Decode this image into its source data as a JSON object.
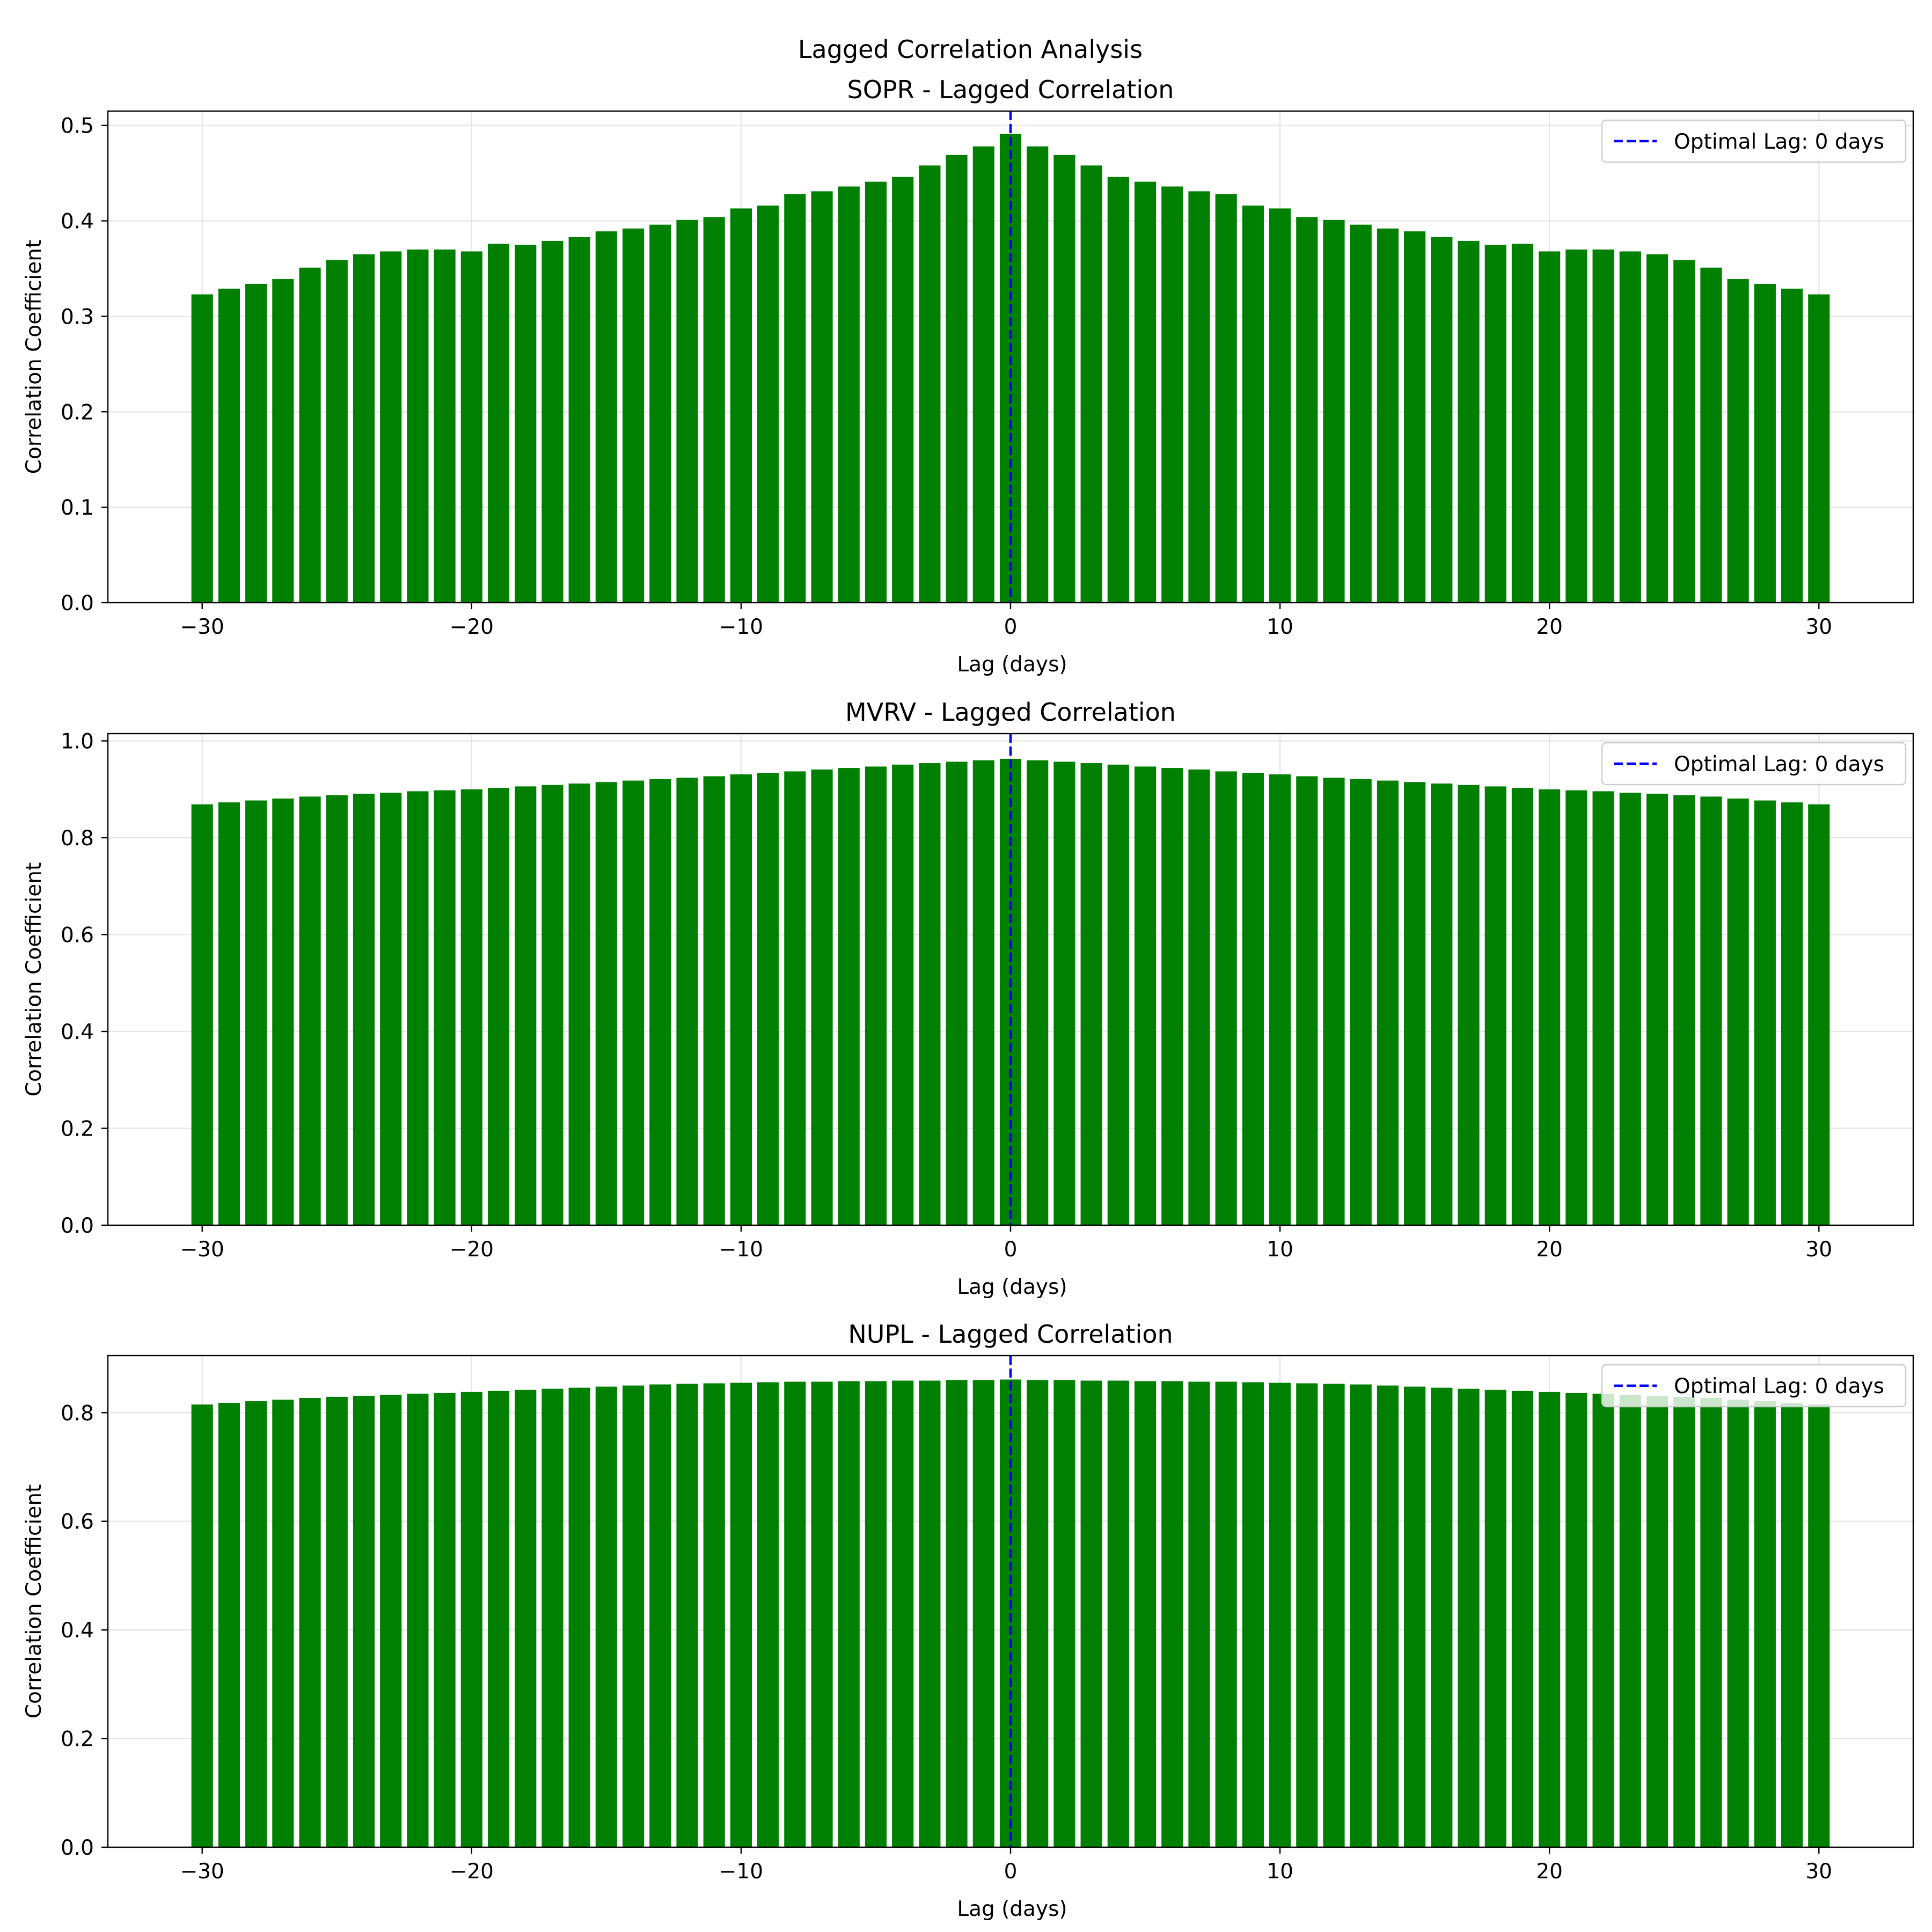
{
  "figure": {
    "suptitle": "Lagged Correlation Analysis"
  },
  "colors": {
    "bar": "#008000",
    "optimal_line": "#0000ff",
    "grid": "#e6e6e6",
    "axes": "#000000"
  },
  "chart_data": [
    {
      "type": "bar",
      "title": "SOPR - Lagged Correlation",
      "xlabel": "Lag (days)",
      "ylabel": "Correlation Coefficient",
      "xlim": [
        -33.5,
        33.5
      ],
      "ylim": [
        0,
        0.515
      ],
      "xticks": [
        -30,
        -20,
        -10,
        0,
        10,
        20,
        30
      ],
      "xtick_labels": [
        "−30",
        "−20",
        "−10",
        "0",
        "10",
        "20",
        "30"
      ],
      "yticks": [
        0.0,
        0.1,
        0.2,
        0.3,
        0.4,
        0.5
      ],
      "ytick_labels": [
        "0.0",
        "0.1",
        "0.2",
        "0.3",
        "0.4",
        "0.5"
      ],
      "grid": true,
      "legend_position": "upper right",
      "legend": [
        "Optimal Lag: 0 days"
      ],
      "optimal_lag": 0,
      "x": [
        -30,
        -29,
        -28,
        -27,
        -26,
        -25,
        -24,
        -23,
        -22,
        -21,
        -20,
        -19,
        -18,
        -17,
        -16,
        -15,
        -14,
        -13,
        -12,
        -11,
        -10,
        -9,
        -8,
        -7,
        -6,
        -5,
        -4,
        -3,
        -2,
        -1,
        0,
        1,
        2,
        3,
        4,
        5,
        6,
        7,
        8,
        9,
        10,
        11,
        12,
        13,
        14,
        15,
        16,
        17,
        18,
        19,
        20,
        21,
        22,
        23,
        24,
        25,
        26,
        27,
        28,
        29,
        30
      ],
      "values": [
        0.323,
        0.329,
        0.334,
        0.339,
        0.351,
        0.359,
        0.365,
        0.368,
        0.37,
        0.37,
        0.368,
        0.376,
        0.375,
        0.379,
        0.383,
        0.389,
        0.392,
        0.396,
        0.401,
        0.404,
        0.413,
        0.416,
        0.428,
        0.431,
        0.436,
        0.441,
        0.446,
        0.458,
        0.469,
        0.478,
        0.491,
        0.478,
        0.469,
        0.458,
        0.446,
        0.441,
        0.436,
        0.431,
        0.428,
        0.416,
        0.413,
        0.404,
        0.401,
        0.396,
        0.392,
        0.389,
        0.383,
        0.379,
        0.375,
        0.376,
        0.368,
        0.37,
        0.37,
        0.368,
        0.365,
        0.359,
        0.351,
        0.339,
        0.334,
        0.329,
        0.323
      ]
    },
    {
      "type": "bar",
      "title": "MVRV - Lagged Correlation",
      "xlabel": "Lag (days)",
      "ylabel": "Correlation Coefficient",
      "xlim": [
        -33.5,
        33.5
      ],
      "ylim": [
        0,
        1.015
      ],
      "xticks": [
        -30,
        -20,
        -10,
        0,
        10,
        20,
        30
      ],
      "xtick_labels": [
        "−30",
        "−20",
        "−10",
        "0",
        "10",
        "20",
        "30"
      ],
      "yticks": [
        0.0,
        0.2,
        0.4,
        0.6,
        0.8,
        1.0
      ],
      "ytick_labels": [
        "0.0",
        "0.2",
        "0.4",
        "0.6",
        "0.8",
        "1.0"
      ],
      "grid": true,
      "legend_position": "upper right",
      "legend": [
        "Optimal Lag: 0 days"
      ],
      "optimal_lag": 0,
      "x": [
        -30,
        -29,
        -28,
        -27,
        -26,
        -25,
        -24,
        -23,
        -22,
        -21,
        -20,
        -19,
        -18,
        -17,
        -16,
        -15,
        -14,
        -13,
        -12,
        -11,
        -10,
        -9,
        -8,
        -7,
        -6,
        -5,
        -4,
        -3,
        -2,
        -1,
        0,
        1,
        2,
        3,
        4,
        5,
        6,
        7,
        8,
        9,
        10,
        11,
        12,
        13,
        14,
        15,
        16,
        17,
        18,
        19,
        20,
        21,
        22,
        23,
        24,
        25,
        26,
        27,
        28,
        29,
        30
      ],
      "values": [
        0.869,
        0.873,
        0.877,
        0.881,
        0.885,
        0.888,
        0.891,
        0.893,
        0.896,
        0.898,
        0.9,
        0.903,
        0.906,
        0.909,
        0.912,
        0.915,
        0.918,
        0.921,
        0.924,
        0.927,
        0.931,
        0.934,
        0.937,
        0.941,
        0.944,
        0.947,
        0.951,
        0.954,
        0.957,
        0.96,
        0.963,
        0.96,
        0.957,
        0.954,
        0.951,
        0.947,
        0.944,
        0.941,
        0.937,
        0.934,
        0.931,
        0.927,
        0.924,
        0.921,
        0.918,
        0.915,
        0.912,
        0.909,
        0.906,
        0.903,
        0.9,
        0.898,
        0.896,
        0.893,
        0.891,
        0.888,
        0.885,
        0.881,
        0.877,
        0.873,
        0.869
      ]
    },
    {
      "type": "bar",
      "title": "NUPL - Lagged Correlation",
      "xlabel": "Lag (days)",
      "ylabel": "Correlation Coefficient",
      "xlim": [
        -33.5,
        33.5
      ],
      "ylim": [
        0,
        0.905
      ],
      "xticks": [
        -30,
        -20,
        -10,
        0,
        10,
        20,
        30
      ],
      "xtick_labels": [
        "−30",
        "−20",
        "−10",
        "0",
        "10",
        "20",
        "30"
      ],
      "yticks": [
        0.0,
        0.2,
        0.4,
        0.6,
        0.8
      ],
      "ytick_labels": [
        "0.0",
        "0.2",
        "0.4",
        "0.6",
        "0.8"
      ],
      "grid": true,
      "legend_position": "upper right",
      "legend": [
        "Optimal Lag: 0 days"
      ],
      "optimal_lag": 0,
      "x": [
        -30,
        -29,
        -28,
        -27,
        -26,
        -25,
        -24,
        -23,
        -22,
        -21,
        -20,
        -19,
        -18,
        -17,
        -16,
        -15,
        -14,
        -13,
        -12,
        -11,
        -10,
        -9,
        -8,
        -7,
        -6,
        -5,
        -4,
        -3,
        -2,
        -1,
        0,
        1,
        2,
        3,
        4,
        5,
        6,
        7,
        8,
        9,
        10,
        11,
        12,
        13,
        14,
        15,
        16,
        17,
        18,
        19,
        20,
        21,
        22,
        23,
        24,
        25,
        26,
        27,
        28,
        29,
        30
      ],
      "values": [
        0.815,
        0.818,
        0.821,
        0.824,
        0.827,
        0.829,
        0.831,
        0.833,
        0.835,
        0.836,
        0.838,
        0.84,
        0.842,
        0.844,
        0.846,
        0.848,
        0.85,
        0.852,
        0.853,
        0.854,
        0.855,
        0.856,
        0.857,
        0.857,
        0.858,
        0.858,
        0.859,
        0.859,
        0.86,
        0.86,
        0.861,
        0.86,
        0.86,
        0.859,
        0.859,
        0.858,
        0.858,
        0.857,
        0.857,
        0.856,
        0.855,
        0.854,
        0.853,
        0.852,
        0.85,
        0.848,
        0.846,
        0.844,
        0.842,
        0.84,
        0.838,
        0.836,
        0.835,
        0.833,
        0.831,
        0.829,
        0.827,
        0.824,
        0.821,
        0.818,
        0.815
      ]
    }
  ]
}
